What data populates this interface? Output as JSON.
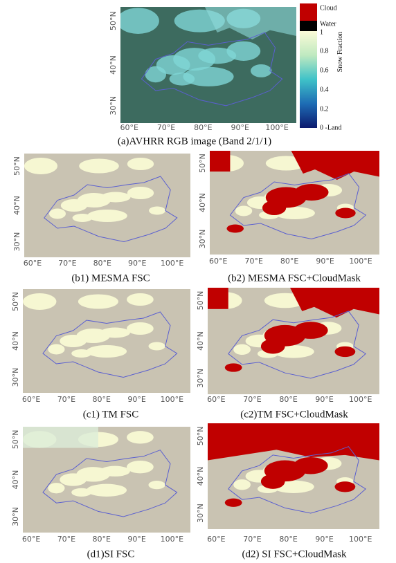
{
  "colorbar": {
    "title": "Snow Fraction",
    "labels": [
      "Cloud",
      "Water",
      "1",
      "0.8",
      "0.6",
      "0.4",
      "0.2",
      "0 -Land"
    ]
  },
  "panels": [
    {
      "caption": "(a)AVHRR RGB image (Band 2/1/1)",
      "xticks": [
        "60°E",
        "70°E",
        "80°E",
        "90°E",
        "100°E"
      ],
      "yticks": [
        "50°N",
        "40°N",
        "30°N"
      ]
    },
    {
      "caption": "(b1) MESMA FSC",
      "xticks": [
        "60°E",
        "70°E",
        "80°E",
        "90°E",
        "100°E"
      ],
      "yticks": [
        "50°N",
        "40°N",
        "30°N"
      ]
    },
    {
      "caption": "(b2) MESMA FSC+CloudMask",
      "xticks": [
        "60°E",
        "70°E",
        "80°E",
        "90°E",
        "100°E"
      ],
      "yticks": [
        "50°N",
        "40°N",
        "30°N"
      ]
    },
    {
      "caption": "(c1) TM FSC",
      "xticks": [
        "60°E",
        "70°E",
        "80°E",
        "90°E",
        "100°E"
      ],
      "yticks": [
        "50°N",
        "40°N",
        "30°N"
      ]
    },
    {
      "caption": "(c2)TM FSC+CloudMask",
      "xticks": [
        "60°E",
        "70°E",
        "80°E",
        "90°E",
        "100°E"
      ],
      "yticks": [
        "50°N",
        "40°N",
        "30°N"
      ]
    },
    {
      "caption": "(d1)SI FSC",
      "xticks": [
        "60°E",
        "70°E",
        "80°E",
        "90°E",
        "100°E"
      ],
      "yticks": [
        "50°N",
        "40°N",
        "30°N"
      ]
    },
    {
      "caption": "(d2) SI FSC+CloudMask",
      "xticks": [
        "60°E",
        "70°E",
        "80°E",
        "90°E",
        "100°E"
      ],
      "yticks": [
        "50°N",
        "40°N",
        "30°N"
      ]
    }
  ]
}
